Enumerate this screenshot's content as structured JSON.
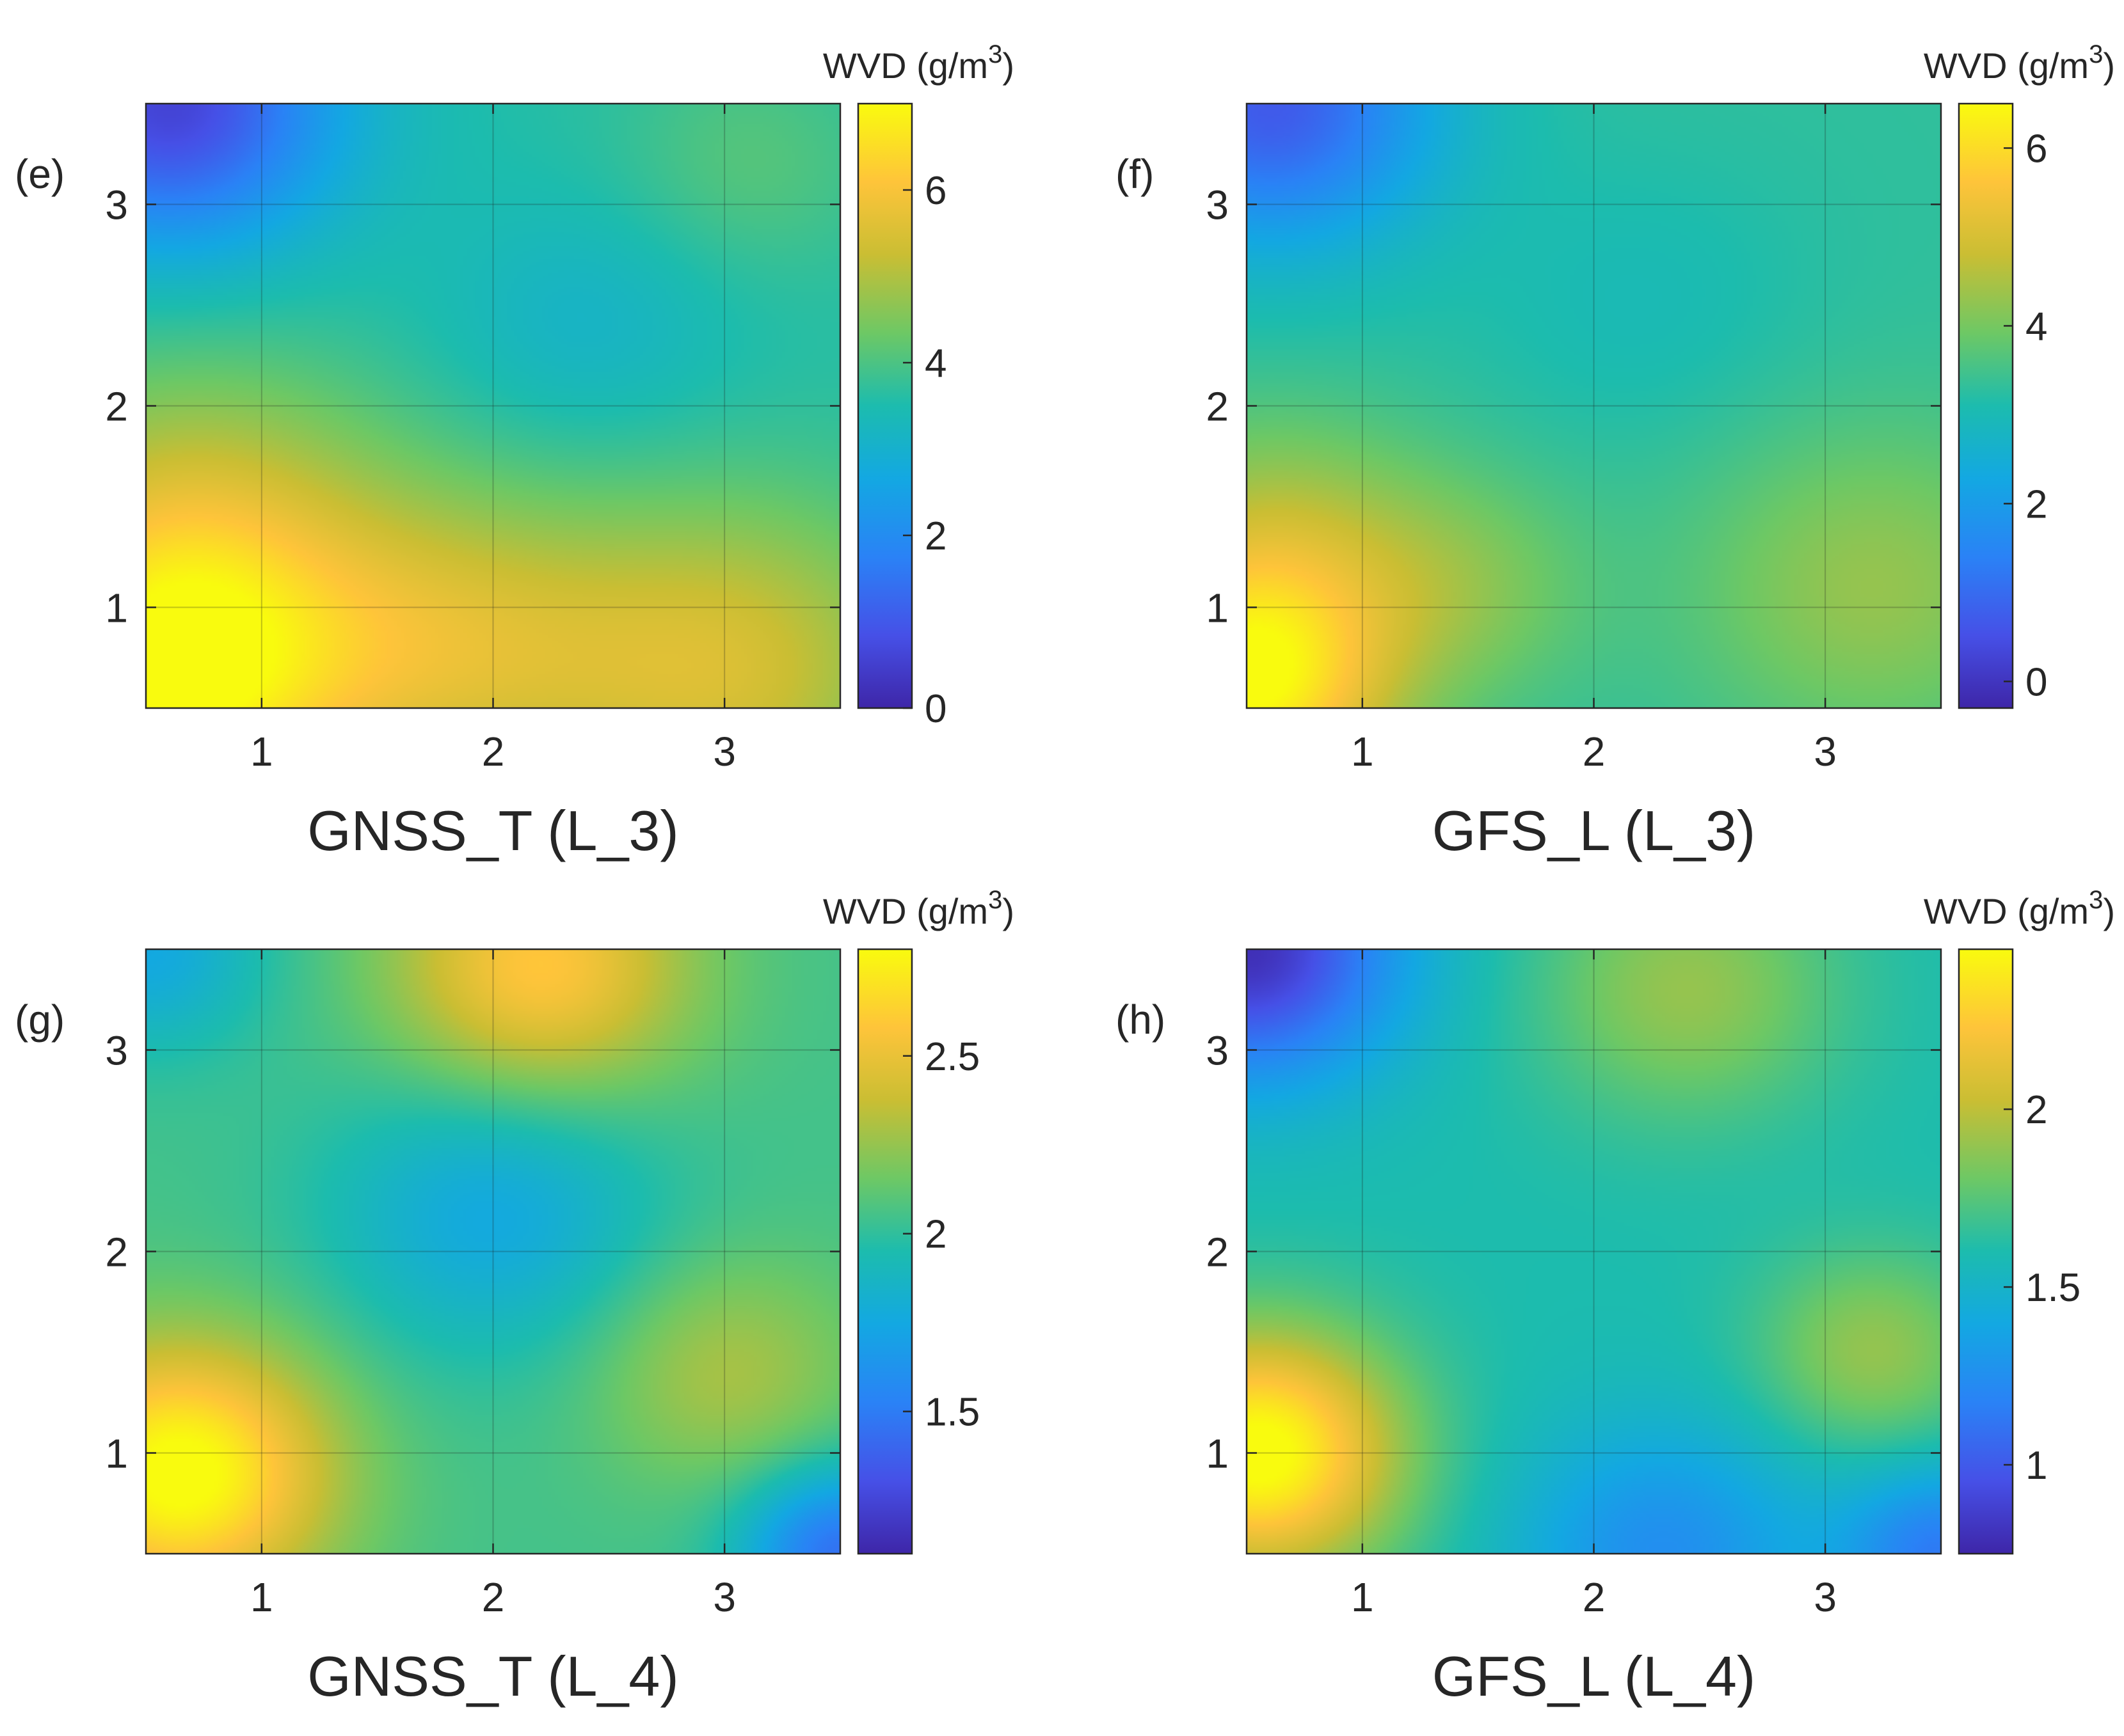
{
  "chart_data": [
    {
      "type": "heatmap",
      "panel_label": "(e)",
      "xlabel": "GNSS_T (L_3)",
      "xticks": [
        "1",
        "2",
        "3"
      ],
      "yticks": [
        "1",
        "2",
        "3"
      ],
      "xlim": [
        0.5,
        3.5
      ],
      "ylim": [
        0.5,
        3.5
      ],
      "grid": true,
      "colorbar": {
        "label": "WVD (g/m3)",
        "label_base": "WVD (g/m",
        "label_sup": "3",
        "label_close": ")",
        "range": [
          0,
          7
        ],
        "ticks": [
          "0",
          "2",
          "4",
          "6"
        ],
        "tick_values": [
          0,
          2,
          4,
          6
        ]
      },
      "bumps": [
        {
          "x": 0.6,
          "y": 0.6,
          "amp": 3.0,
          "sigma": 0.55
        },
        {
          "x": 0.7,
          "y": 1.4,
          "amp": 1.5,
          "sigma": 0.6
        },
        {
          "x": 1.8,
          "y": 0.8,
          "amp": 1.6,
          "sigma": 0.55
        },
        {
          "x": 3.0,
          "y": 0.7,
          "amp": 1.8,
          "sigma": 0.6
        },
        {
          "x": 0.6,
          "y": 3.5,
          "amp": -3.0,
          "sigma": 0.5
        },
        {
          "x": 2.4,
          "y": 2.4,
          "amp": -0.5,
          "sigma": 0.45
        },
        {
          "x": 3.1,
          "y": 3.2,
          "amp": 0.5,
          "sigma": 0.4
        }
      ],
      "base": 3.6
    },
    {
      "type": "heatmap",
      "panel_label": "(f)",
      "xlabel": "GFS_L (L_3)",
      "xticks": [
        "1",
        "2",
        "3"
      ],
      "yticks": [
        "1",
        "2",
        "3"
      ],
      "xlim": [
        0.5,
        3.5
      ],
      "ylim": [
        0.5,
        3.5
      ],
      "grid": true,
      "colorbar": {
        "label": "WVD (g/m3)",
        "label_base": "WVD (g/m",
        "label_sup": "3",
        "label_close": ")",
        "range": [
          -0.3,
          6.5
        ],
        "ticks": [
          "0",
          "2",
          "4",
          "6"
        ],
        "tick_values": [
          0,
          2,
          4,
          6
        ]
      },
      "bumps": [
        {
          "x": 0.5,
          "y": 0.6,
          "amp": 3.0,
          "sigma": 0.42
        },
        {
          "x": 0.6,
          "y": 1.3,
          "amp": 1.2,
          "sigma": 0.45
        },
        {
          "x": 1.4,
          "y": 1.1,
          "amp": 0.8,
          "sigma": 0.4
        },
        {
          "x": 3.2,
          "y": 1.1,
          "amp": 1.0,
          "sigma": 0.55
        },
        {
          "x": 0.6,
          "y": 3.5,
          "amp": -2.6,
          "sigma": 0.5
        },
        {
          "x": 2.2,
          "y": 2.5,
          "amp": -0.3,
          "sigma": 0.5
        }
      ],
      "base": 3.3
    },
    {
      "type": "heatmap",
      "panel_label": "(g)",
      "xlabel": "GNSS_T (L_4)",
      "xticks": [
        "1",
        "2",
        "3"
      ],
      "yticks": [
        "1",
        "2",
        "3"
      ],
      "xlim": [
        0.5,
        3.5
      ],
      "ylim": [
        0.5,
        3.5
      ],
      "grid": true,
      "colorbar": {
        "label": "WVD (g/m3)",
        "label_base": "WVD (g/m",
        "label_sup": "3",
        "label_close": ")",
        "range": [
          1.1,
          2.8
        ],
        "ticks": [
          "1.5",
          "2",
          "2.5"
        ],
        "tick_values": [
          1.5,
          2,
          2.5
        ]
      },
      "bumps": [
        {
          "x": 0.65,
          "y": 0.9,
          "amp": 0.8,
          "sigma": 0.45
        },
        {
          "x": 2.2,
          "y": 3.4,
          "amp": 0.55,
          "sigma": 0.45
        },
        {
          "x": 3.0,
          "y": 1.4,
          "amp": 0.25,
          "sigma": 0.4
        },
        {
          "x": 2.0,
          "y": 2.2,
          "amp": -0.3,
          "sigma": 0.5
        },
        {
          "x": 3.5,
          "y": 0.5,
          "amp": -0.6,
          "sigma": 0.3
        },
        {
          "x": 0.5,
          "y": 3.5,
          "amp": -0.3,
          "sigma": 0.35
        }
      ],
      "base": 2.05
    },
    {
      "type": "heatmap",
      "panel_label": "(h)",
      "xlabel": "GFS_L (L_4)",
      "xticks": [
        "1",
        "2",
        "3"
      ],
      "yticks": [
        "1",
        "2",
        "3"
      ],
      "xlim": [
        0.5,
        3.5
      ],
      "ylim": [
        0.5,
        3.5
      ],
      "grid": true,
      "colorbar": {
        "label": "WVD (g/m3)",
        "label_base": "WVD (g/m",
        "label_sup": "3",
        "label_close": ")",
        "range": [
          0.75,
          2.45
        ],
        "ticks": [
          "1",
          "1.5",
          "2"
        ],
        "tick_values": [
          1,
          1.5,
          2
        ]
      },
      "bumps": [
        {
          "x": 0.55,
          "y": 1.0,
          "amp": 0.9,
          "sigma": 0.42
        },
        {
          "x": 2.4,
          "y": 3.3,
          "amp": 0.3,
          "sigma": 0.45
        },
        {
          "x": 3.2,
          "y": 1.5,
          "amp": 0.3,
          "sigma": 0.35
        },
        {
          "x": 0.5,
          "y": 3.5,
          "amp": -0.8,
          "sigma": 0.45
        },
        {
          "x": 2.3,
          "y": 0.5,
          "amp": -0.35,
          "sigma": 0.45
        },
        {
          "x": 3.5,
          "y": 0.5,
          "amp": -0.45,
          "sigma": 0.3
        }
      ],
      "base": 1.6
    }
  ]
}
